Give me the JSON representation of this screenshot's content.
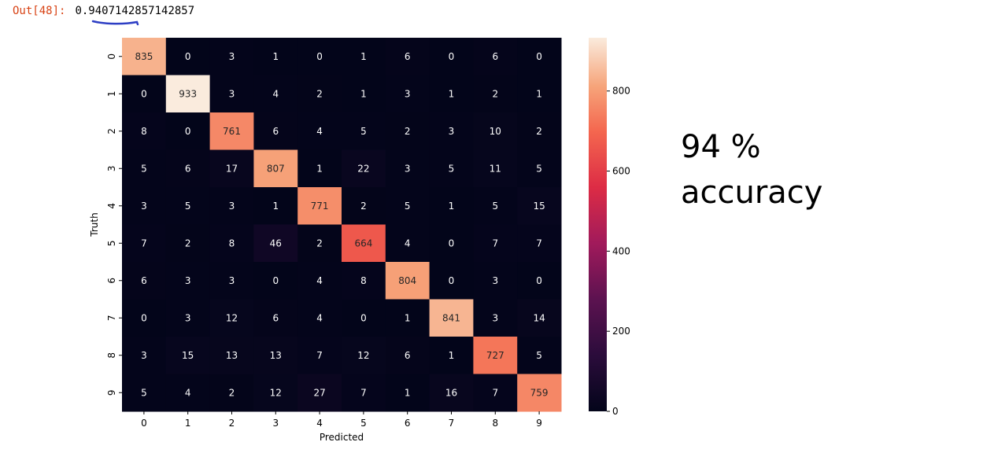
{
  "output": {
    "prompt": "Out[48]:",
    "value": "0.9407142857142857"
  },
  "annotation": {
    "line1": "94 %",
    "line2": "accuracy"
  },
  "chart_data": {
    "type": "heatmap",
    "xlabel": "Predicted",
    "ylabel": "Truth",
    "x_categories": [
      "0",
      "1",
      "2",
      "3",
      "4",
      "5",
      "6",
      "7",
      "8",
      "9"
    ],
    "y_categories": [
      "0",
      "1",
      "2",
      "3",
      "4",
      "5",
      "6",
      "7",
      "8",
      "9"
    ],
    "values": [
      [
        835,
        0,
        3,
        1,
        0,
        1,
        6,
        0,
        6,
        0
      ],
      [
        0,
        933,
        3,
        4,
        2,
        1,
        3,
        1,
        2,
        1
      ],
      [
        8,
        0,
        761,
        6,
        4,
        5,
        2,
        3,
        10,
        2
      ],
      [
        5,
        6,
        17,
        807,
        1,
        22,
        3,
        5,
        11,
        5
      ],
      [
        3,
        5,
        3,
        1,
        771,
        2,
        5,
        1,
        5,
        15
      ],
      [
        7,
        2,
        8,
        46,
        2,
        664,
        4,
        0,
        7,
        7
      ],
      [
        6,
        3,
        3,
        0,
        4,
        8,
        804,
        0,
        3,
        0
      ],
      [
        0,
        3,
        12,
        6,
        4,
        0,
        1,
        841,
        3,
        14
      ],
      [
        3,
        15,
        13,
        13,
        7,
        12,
        6,
        1,
        727,
        5
      ],
      [
        5,
        4,
        2,
        12,
        27,
        7,
        1,
        16,
        7,
        759
      ]
    ],
    "colorbar": {
      "colormap": "rocket",
      "vmin": 0,
      "vmax": 933,
      "ticks": [
        0,
        200,
        400,
        600,
        800
      ]
    }
  }
}
